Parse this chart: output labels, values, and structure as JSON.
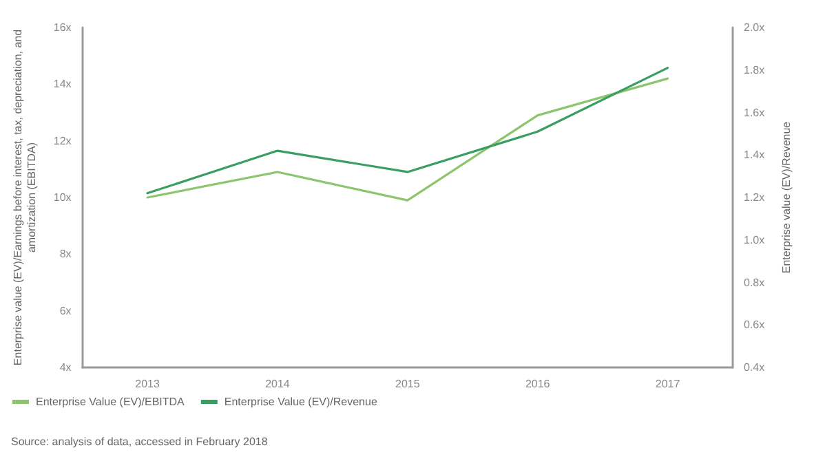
{
  "chart_data": {
    "type": "line",
    "ylabel": "Enterprise value (EV)/Earnings before interest, tax, depreciation, and amortization (EBITDA)",
    "y2label": "Enterprise value (EV)/Revenue",
    "categories": [
      "2013",
      "2014",
      "2015",
      "2016",
      "2017"
    ],
    "series": [
      {
        "name": "Enterprise Value (EV)/EBITDA",
        "color": "#8cc56e",
        "values": [
          10.0,
          10.9,
          9.9,
          12.9,
          14.2
        ]
      },
      {
        "name": "Enterprise Value (EV)/Revenue",
        "color": "#3a9d62",
        "axis": "y2",
        "values": [
          1.22,
          1.42,
          1.32,
          1.51,
          1.81
        ]
      }
    ],
    "ylim": [
      4,
      16
    ],
    "yticks": [
      {
        "value": 4,
        "label": "4x"
      },
      {
        "value": 6,
        "label": "6x"
      },
      {
        "value": 8,
        "label": "8x"
      },
      {
        "value": 10,
        "label": "10x"
      },
      {
        "value": 12,
        "label": "12x"
      },
      {
        "value": 14,
        "label": "14x"
      },
      {
        "value": 16,
        "label": "16x"
      }
    ],
    "y2lim": [
      0.4,
      2.0
    ],
    "y2ticks": [
      {
        "value": 0.4,
        "label": "0.4x"
      },
      {
        "value": 0.6,
        "label": "0.6x"
      },
      {
        "value": 0.8,
        "label": "0.8x"
      },
      {
        "value": 1.0,
        "label": "1.0x"
      },
      {
        "value": 1.2,
        "label": "1.2x"
      },
      {
        "value": 1.4,
        "label": "1.4x"
      },
      {
        "value": 1.6,
        "label": "1.6x"
      },
      {
        "value": 1.8,
        "label": "1.8x"
      },
      {
        "value": 2.0,
        "label": "2.0x"
      }
    ],
    "grid": false,
    "legend": "bottom left",
    "marker": "none",
    "line_style": "solid",
    "annotations": [
      "Source: analysis of data, accessed in February 2018"
    ]
  }
}
